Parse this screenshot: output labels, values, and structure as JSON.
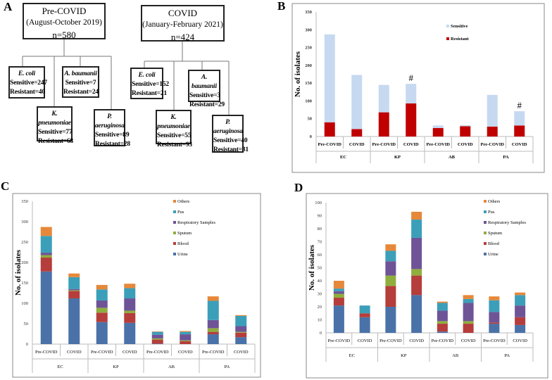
{
  "panel_labels": [
    "A",
    "B",
    "C",
    "D"
  ],
  "panel_a": {
    "groups": [
      {
        "title": "Pre-COVID",
        "period": "(August-October 2019)",
        "n": "n=580",
        "organisms": [
          {
            "name": "E. coli",
            "sensitive": "Sensitive=247",
            "resistant": "Resistant=40"
          },
          {
            "name": "K. pneumoniae",
            "sensitive": "Sensitive=77",
            "resistant": "Resistant=68"
          },
          {
            "name": "A. baumanii",
            "sensitive": "Sensitive=7",
            "resistant": "Resistant=24"
          },
          {
            "name": "P. aeruginosa",
            "sensitive": "Sensitive=89",
            "resistant": "Resistant=28"
          }
        ]
      },
      {
        "title": "COVID",
        "period": "(January-February 2021)",
        "n": "n=424",
        "organisms": [
          {
            "name": "E. coli",
            "sensitive": "Sensitive=152",
            "resistant": "Resistant=21"
          },
          {
            "name": "K. pneumoniae",
            "sensitive": "Sensitive=55",
            "resistant": "Resistant=93"
          },
          {
            "name": "A. baumanii",
            "sensitive": "Sensitive=3",
            "resistant": "Resistant=29"
          },
          {
            "name": "P. aeruginosa",
            "sensitive": "Sensitive=40",
            "resistant": "Resistant=31"
          }
        ]
      }
    ]
  },
  "chart_data": [
    {
      "id": "B",
      "type": "bar",
      "stacked": true,
      "ylabel": "No. of isolates",
      "ylim": [
        0,
        350
      ],
      "yticks": [
        0,
        50,
        100,
        150,
        200,
        250,
        300,
        350
      ],
      "groups": [
        "EC",
        "KP",
        "AB",
        "PA"
      ],
      "categories": [
        "Pre-COVID",
        "COVID",
        "Pre-COVID",
        "COVID",
        "Pre-COVID",
        "COVID",
        "Pre-COVID",
        "COVID"
      ],
      "legend_position": "top-right",
      "series": [
        {
          "name": "Resistant",
          "color": "#c00000",
          "values": [
            40,
            21,
            68,
            93,
            24,
            29,
            28,
            31
          ]
        },
        {
          "name": "Sensitive",
          "color": "#c6d9f1",
          "values": [
            247,
            152,
            77,
            55,
            7,
            3,
            89,
            40
          ]
        }
      ],
      "legend_order": [
        "Sensitive",
        "Resistant"
      ],
      "annotations": [
        {
          "category_index": 3,
          "text": "#"
        },
        {
          "category_index": 7,
          "text": "#"
        }
      ]
    },
    {
      "id": "C",
      "type": "bar",
      "stacked": true,
      "ylabel": "No. of isolates",
      "ylim": [
        0,
        350
      ],
      "yticks": [
        0,
        50,
        100,
        150,
        200,
        250,
        300,
        350
      ],
      "groups": [
        "EC",
        "KP",
        "AB",
        "PA"
      ],
      "categories": [
        "Pre-COVID",
        "COVID",
        "Pre-COVID",
        "COVID",
        "Pre-COVID",
        "COVID",
        "Pre-COVID",
        "COVID"
      ],
      "legend_position": "top-right",
      "series": [
        {
          "name": "Urine",
          "color": "#4a72a8",
          "values": [
            178,
            112,
            54,
            52,
            1,
            0,
            24,
            17
          ]
        },
        {
          "name": "Blood",
          "color": "#b53d3b",
          "values": [
            34,
            18,
            23,
            24,
            10,
            7,
            6,
            11
          ]
        },
        {
          "name": "Sputum",
          "color": "#8fae3e",
          "values": [
            6,
            2,
            12,
            6,
            3,
            2,
            9,
            2
          ]
        },
        {
          "name": "Respiratory Samples",
          "color": "#6e5496",
          "values": [
            6,
            3,
            18,
            30,
            9,
            15,
            20,
            14
          ]
        },
        {
          "name": "Pus",
          "color": "#3c9fba",
          "values": [
            41,
            29,
            27,
            25,
            7,
            6,
            47,
            25
          ]
        },
        {
          "name": "Others",
          "color": "#e6883a",
          "values": [
            22,
            9,
            11,
            11,
            1,
            2,
            11,
            2
          ]
        }
      ],
      "legend_order": [
        "Others",
        "Pus",
        "Respiratory Samples",
        "Sputum",
        "Blood",
        "Urine"
      ],
      "annotations": []
    },
    {
      "id": "D",
      "type": "bar",
      "stacked": true,
      "ylabel": "No. of isolates",
      "ylim": [
        0,
        100
      ],
      "yticks": [
        0,
        10,
        20,
        30,
        40,
        50,
        60,
        70,
        80,
        90,
        100
      ],
      "groups": [
        "EC",
        "KP",
        "AB",
        "PA"
      ],
      "categories": [
        "Pre-COVID",
        "COVID",
        "Pre-COVID",
        "COVID",
        "Pre-COVID",
        "COVID",
        "Pre-COVID",
        "COVID"
      ],
      "legend_position": "top-right",
      "series": [
        {
          "name": "Urine",
          "color": "#4a72a8",
          "values": [
            21,
            12,
            20,
            29,
            1,
            0,
            7,
            6
          ]
        },
        {
          "name": "Blood",
          "color": "#b53d3b",
          "values": [
            6,
            3,
            16,
            15,
            6,
            7,
            1,
            6
          ]
        },
        {
          "name": "Sputum",
          "color": "#8fae3e",
          "values": [
            3,
            0,
            8,
            5,
            2,
            2,
            0,
            0
          ]
        },
        {
          "name": "Respiratory Samples",
          "color": "#6e5496",
          "values": [
            2,
            0,
            11,
            24,
            8,
            14,
            8,
            9
          ]
        },
        {
          "name": "Pus",
          "color": "#3c9fba",
          "values": [
            2,
            6,
            8,
            14,
            6,
            3,
            9,
            8
          ]
        },
        {
          "name": "Others",
          "color": "#e6883a",
          "values": [
            6,
            0,
            5,
            6,
            1,
            3,
            3,
            2
          ]
        }
      ],
      "legend_order": [
        "Others",
        "Pus",
        "Respiratory Samples",
        "Sputum",
        "Blood",
        "Urine"
      ],
      "annotations": []
    }
  ]
}
